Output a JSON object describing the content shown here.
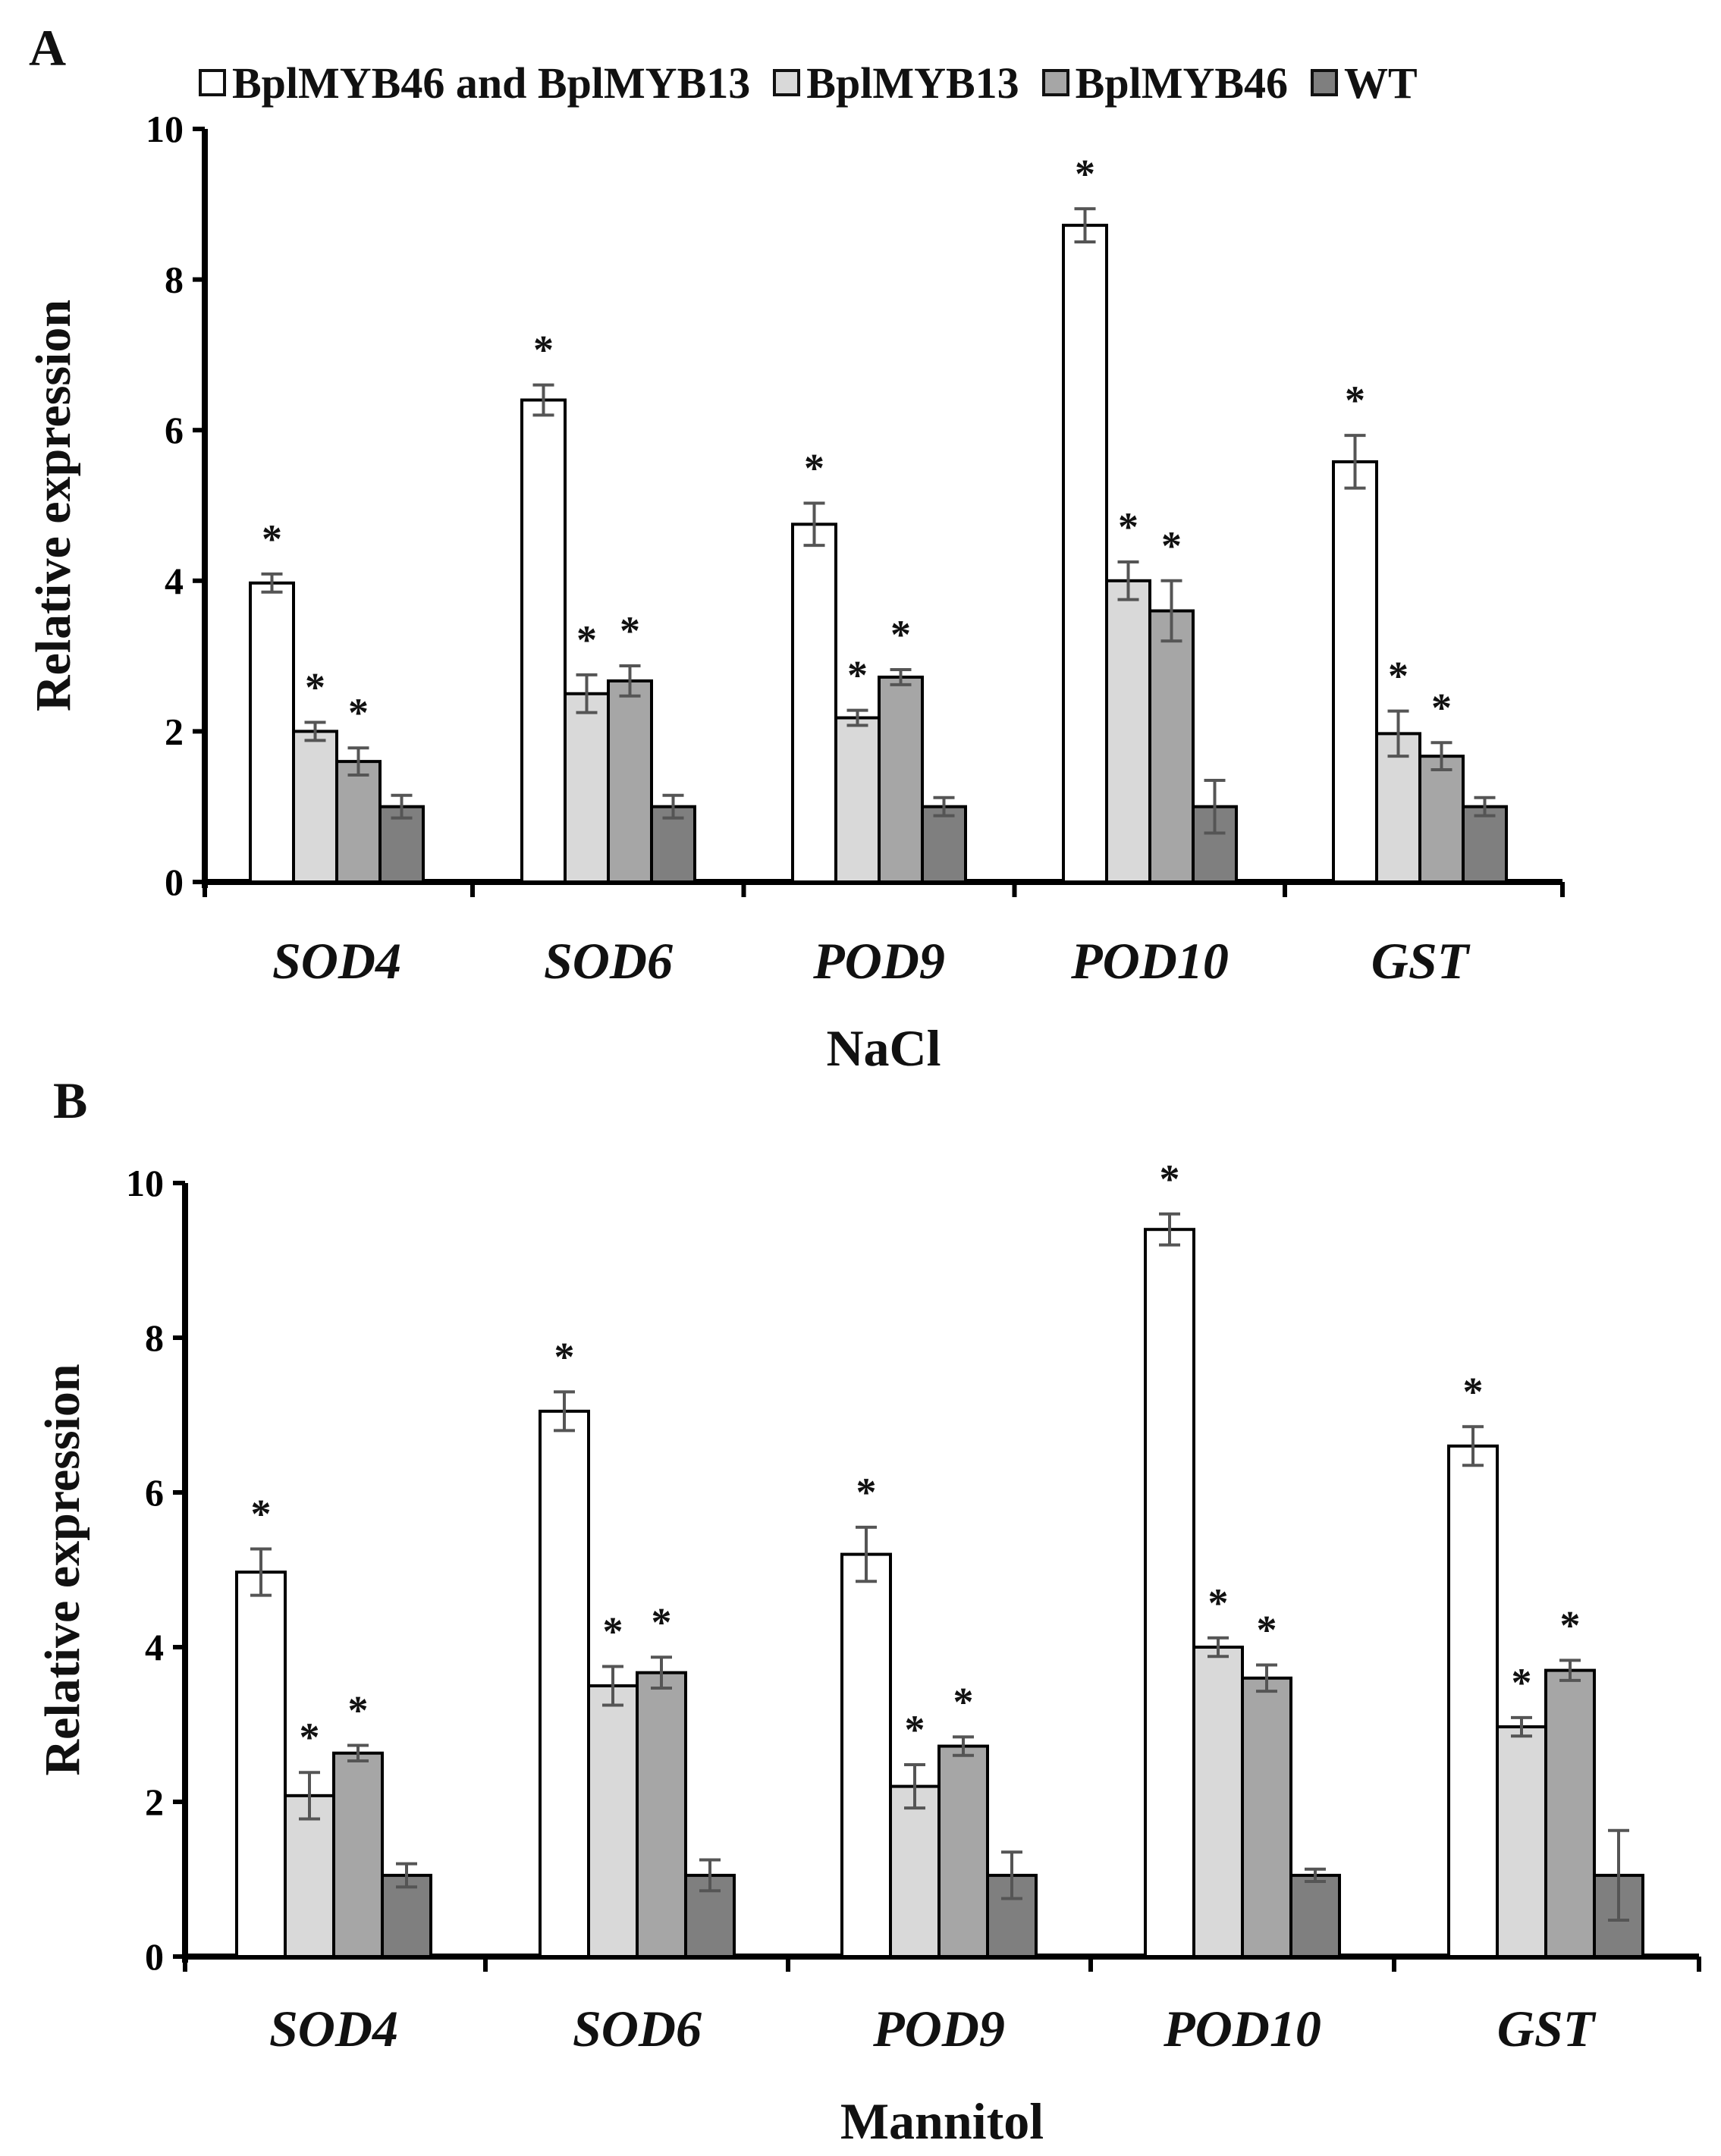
{
  "legend": [
    {
      "name": "BplMYB46 and BplMYB13",
      "color": "#ffffff"
    },
    {
      "name": "BplMYB13",
      "color": "#d9d9d9"
    },
    {
      "name": "BplMYB46",
      "color": "#a6a6a6"
    },
    {
      "name": "WT",
      "color": "#7f7f7f"
    }
  ],
  "chart_data": [
    {
      "panel": "A",
      "type": "bar",
      "title": "",
      "xlabel": "NaCl",
      "ylabel": "Relative expression",
      "ylim": [
        0,
        10
      ],
      "yticks": [
        "0",
        "2",
        "4",
        "6",
        "8",
        "10"
      ],
      "categories": [
        "SOD4",
        "SOD6",
        "POD9",
        "POD10",
        "GST"
      ],
      "significance_marker": "*",
      "series": [
        {
          "name": "BplMYB46 and BplMYB13",
          "color": "#ffffff",
          "values": [
            3.97,
            6.4,
            4.75,
            8.72,
            5.58
          ],
          "errors": [
            0.12,
            0.2,
            0.28,
            0.22,
            0.35
          ],
          "significant": [
            true,
            true,
            true,
            true,
            true
          ]
        },
        {
          "name": "BplMYB13",
          "color": "#d9d9d9",
          "values": [
            2.0,
            2.5,
            2.18,
            4.0,
            1.97
          ],
          "errors": [
            0.12,
            0.25,
            0.1,
            0.25,
            0.3
          ],
          "significant": [
            true,
            true,
            true,
            true,
            true
          ]
        },
        {
          "name": "BplMYB46",
          "color": "#a6a6a6",
          "values": [
            1.6,
            2.67,
            2.72,
            3.6,
            1.67
          ],
          "errors": [
            0.18,
            0.2,
            0.1,
            0.4,
            0.18
          ],
          "significant": [
            true,
            true,
            true,
            true,
            true
          ]
        },
        {
          "name": "WT",
          "color": "#7f7f7f",
          "values": [
            1.0,
            1.0,
            1.0,
            1.0,
            1.0
          ],
          "errors": [
            0.15,
            0.15,
            0.12,
            0.35,
            0.12
          ],
          "significant": [
            false,
            false,
            false,
            false,
            false
          ]
        }
      ]
    },
    {
      "panel": "B",
      "type": "bar",
      "title": "",
      "xlabel": "Mannitol",
      "ylabel": "Relative expression",
      "ylim": [
        0,
        10
      ],
      "yticks": [
        "0",
        "2",
        "4",
        "6",
        "8",
        "10"
      ],
      "categories": [
        "SOD4",
        "SOD6",
        "POD9",
        "POD10",
        "GST"
      ],
      "significance_marker": "*",
      "series": [
        {
          "name": "BplMYB46 and BplMYB13",
          "color": "#ffffff",
          "values": [
            4.97,
            7.05,
            5.2,
            9.4,
            6.6
          ],
          "errors": [
            0.3,
            0.25,
            0.35,
            0.2,
            0.25
          ],
          "significant": [
            true,
            true,
            true,
            true,
            true
          ]
        },
        {
          "name": "BplMYB13",
          "color": "#d9d9d9",
          "values": [
            2.08,
            3.5,
            2.2,
            4.0,
            2.97
          ],
          "errors": [
            0.3,
            0.25,
            0.28,
            0.12,
            0.12
          ],
          "significant": [
            true,
            true,
            true,
            true,
            true
          ]
        },
        {
          "name": "BplMYB46",
          "color": "#a6a6a6",
          "values": [
            2.63,
            3.67,
            2.72,
            3.6,
            3.7
          ],
          "errors": [
            0.1,
            0.2,
            0.12,
            0.17,
            0.13
          ],
          "significant": [
            true,
            true,
            true,
            true,
            true
          ]
        },
        {
          "name": "WT",
          "color": "#7f7f7f",
          "values": [
            1.05,
            1.05,
            1.05,
            1.05,
            1.05
          ],
          "errors": [
            0.15,
            0.2,
            0.3,
            0.08,
            0.58
          ],
          "significant": [
            false,
            false,
            false,
            false,
            false
          ]
        }
      ]
    }
  ]
}
